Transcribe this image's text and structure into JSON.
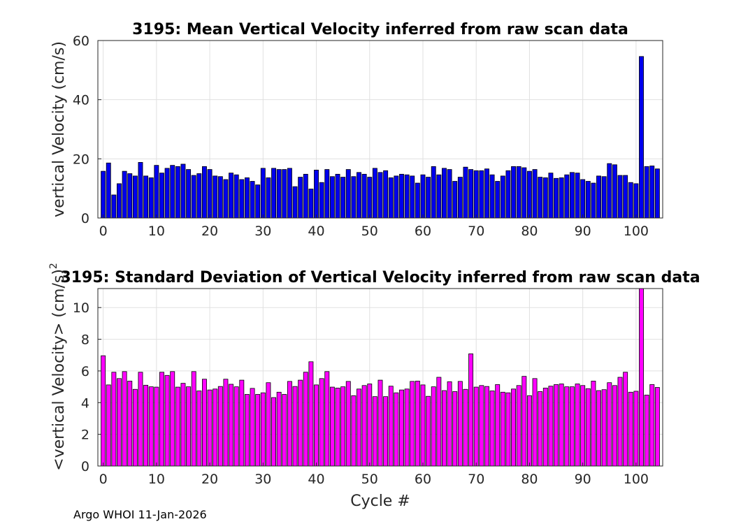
{
  "chart_data": [
    {
      "type": "bar",
      "title": "3195: Mean Vertical Velocity inferred from raw scan data",
      "xlabel": "",
      "ylabel": "vertical Velocity (cm/s)",
      "xlim": [
        -1,
        105
      ],
      "ylim": [
        0,
        60
      ],
      "xticks": [
        0,
        10,
        20,
        30,
        40,
        50,
        60,
        70,
        80,
        90,
        100
      ],
      "yticks": [
        0,
        20,
        40,
        60
      ],
      "grid": true,
      "bar_color": "#0000ee",
      "x": [
        0,
        1,
        2,
        3,
        4,
        5,
        6,
        7,
        8,
        9,
        10,
        11,
        12,
        13,
        14,
        15,
        16,
        17,
        18,
        19,
        20,
        21,
        22,
        23,
        24,
        25,
        26,
        27,
        28,
        29,
        30,
        31,
        32,
        33,
        34,
        35,
        36,
        37,
        38,
        39,
        40,
        41,
        42,
        43,
        44,
        45,
        46,
        47,
        48,
        49,
        50,
        51,
        52,
        53,
        54,
        55,
        56,
        57,
        58,
        59,
        60,
        61,
        62,
        63,
        64,
        65,
        66,
        67,
        68,
        69,
        70,
        71,
        72,
        73,
        74,
        75,
        76,
        77,
        78,
        79,
        80,
        81,
        82,
        83,
        84,
        85,
        86,
        87,
        88,
        89,
        90,
        91,
        92,
        93,
        94,
        95,
        96,
        97,
        98,
        99,
        100,
        101,
        102,
        103,
        104
      ],
      "values": [
        15.8,
        18.6,
        7.8,
        11.6,
        15.8,
        15.0,
        14.2,
        18.8,
        14.2,
        13.6,
        17.8,
        15.2,
        16.8,
        17.8,
        17.4,
        18.2,
        16.4,
        14.4,
        15.0,
        17.4,
        16.4,
        14.2,
        14.0,
        13.0,
        15.2,
        14.6,
        13.0,
        13.6,
        12.4,
        11.2,
        16.8,
        13.6,
        16.8,
        16.4,
        16.4,
        16.8,
        10.6,
        13.8,
        14.8,
        9.8,
        16.2,
        12.0,
        16.4,
        14.0,
        14.8,
        13.8,
        16.4,
        14.0,
        15.4,
        14.8,
        13.8,
        16.8,
        15.4,
        16.0,
        13.6,
        14.2,
        14.8,
        14.6,
        14.2,
        11.8,
        14.6,
        13.8,
        17.4,
        14.6,
        16.8,
        16.4,
        12.4,
        13.8,
        17.2,
        16.4,
        16.0,
        16.0,
        16.6,
        14.6,
        12.4,
        14.2,
        16.0,
        17.4,
        17.4,
        17.0,
        15.8,
        16.4,
        13.8,
        13.6,
        15.2,
        13.4,
        13.6,
        14.6,
        15.4,
        15.2,
        13.0,
        12.4,
        11.8,
        14.2,
        14.0,
        18.4,
        18.0,
        14.4,
        14.4,
        12.0,
        11.6,
        54.6,
        17.4,
        17.6,
        16.6
      ]
    },
    {
      "type": "bar",
      "title": "3195: Standard Deviation of Vertical Velocity inferred from raw scan data",
      "xlabel": "Cycle #",
      "ylabel": "<vertical Velocity> (cm/s)",
      "ylabel_superscript": "2",
      "xlim": [
        -1,
        105
      ],
      "ylim": [
        0,
        11.2
      ],
      "xticks": [
        0,
        10,
        20,
        30,
        40,
        50,
        60,
        70,
        80,
        90,
        100
      ],
      "yticks": [
        0,
        2,
        4,
        6,
        8,
        10
      ],
      "grid": true,
      "bar_color": "#ff00ff",
      "x": [
        0,
        1,
        2,
        3,
        4,
        5,
        6,
        7,
        8,
        9,
        10,
        11,
        12,
        13,
        14,
        15,
        16,
        17,
        18,
        19,
        20,
        21,
        22,
        23,
        24,
        25,
        26,
        27,
        28,
        29,
        30,
        31,
        32,
        33,
        34,
        35,
        36,
        37,
        38,
        39,
        40,
        41,
        42,
        43,
        44,
        45,
        46,
        47,
        48,
        49,
        50,
        51,
        52,
        53,
        54,
        55,
        56,
        57,
        58,
        59,
        60,
        61,
        62,
        63,
        64,
        65,
        66,
        67,
        68,
        69,
        70,
        71,
        72,
        73,
        74,
        75,
        76,
        77,
        78,
        79,
        80,
        81,
        82,
        83,
        84,
        85,
        86,
        87,
        88,
        89,
        90,
        91,
        92,
        93,
        94,
        95,
        96,
        97,
        98,
        99,
        100,
        101,
        102,
        103,
        104
      ],
      "values": [
        6.96,
        5.12,
        5.92,
        5.52,
        5.96,
        5.36,
        4.84,
        5.92,
        5.1,
        5.0,
        4.98,
        5.92,
        5.72,
        5.96,
        4.98,
        5.22,
        5.0,
        5.96,
        4.74,
        5.48,
        4.8,
        4.86,
        5.02,
        5.48,
        5.16,
        5.0,
        5.42,
        4.52,
        4.9,
        4.52,
        4.62,
        5.26,
        4.32,
        4.66,
        4.52,
        5.34,
        5.02,
        5.42,
        5.92,
        6.58,
        5.12,
        5.52,
        5.96,
        4.98,
        4.92,
        5.0,
        5.34,
        4.44,
        4.86,
        5.08,
        5.18,
        4.38,
        5.42,
        4.38,
        5.04,
        4.62,
        4.8,
        4.86,
        5.34,
        5.36,
        5.12,
        4.4,
        5.0,
        5.6,
        4.76,
        5.32,
        4.7,
        5.34,
        4.84,
        7.08,
        4.98,
        5.08,
        5.02,
        4.74,
        5.14,
        4.66,
        4.62,
        4.86,
        5.08,
        5.66,
        4.44,
        5.52,
        4.7,
        4.92,
        5.04,
        5.14,
        5.18,
        5.0,
        5.0,
        5.18,
        5.08,
        4.88,
        5.36,
        4.76,
        4.82,
        5.26,
        5.08,
        5.6,
        5.92,
        4.66,
        4.72,
        11.2,
        4.48,
        5.14,
        4.96
      ]
    }
  ],
  "footer": "Argo WHOI 11-Jan-2026"
}
